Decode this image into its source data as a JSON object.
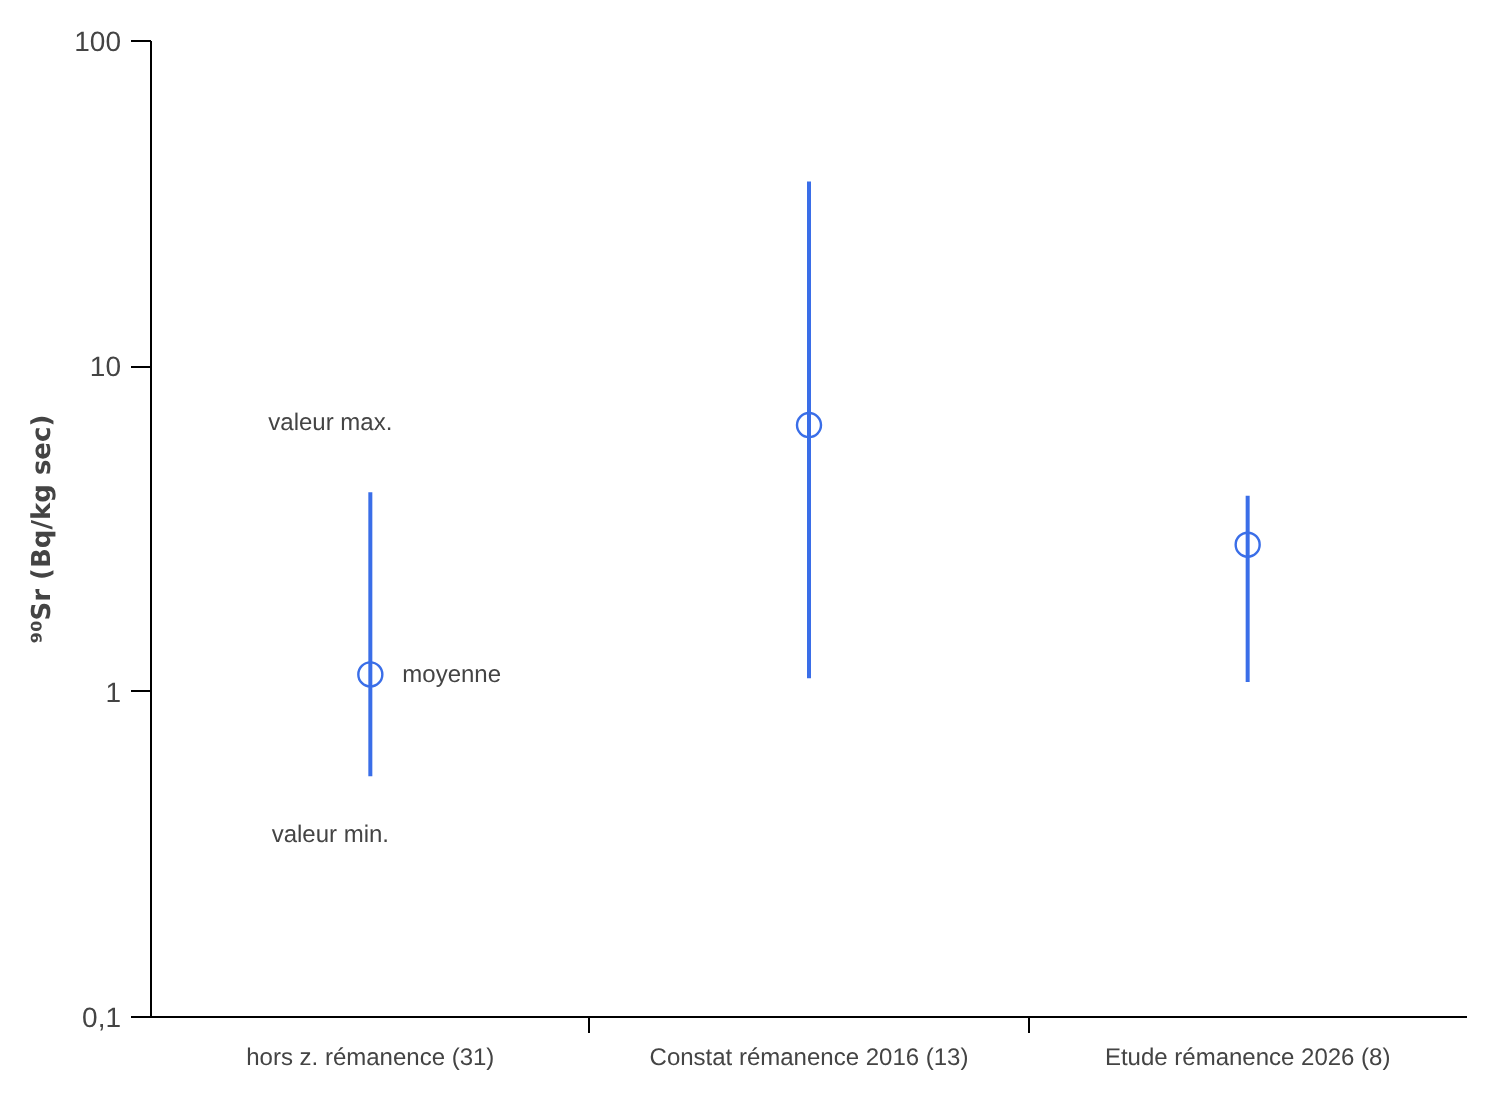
{
  "chart_data": {
    "type": "scatter",
    "ylabel": "⁹⁰Sr (Bq/kg sec)",
    "categories": [
      "hors z. rémanence (31)",
      "Constat rémanence 2016 (13)",
      "Etude rémanence 2026 (8)"
    ],
    "values": [
      1.13,
      6.6,
      2.83
    ],
    "errors": [
      [
        0.55,
        4.1
      ],
      [
        1.1,
        37
      ],
      [
        1.07,
        4.0
      ]
    ],
    "color": "#3a6ee8",
    "marker": "circle",
    "log": true,
    "grid": false,
    "ylim": [
      0.1,
      100
    ],
    "yticks": [
      {
        "value": 0.1,
        "label": "0,1"
      },
      1,
      10,
      100
    ],
    "annotations": [
      "valeur max.",
      "moyenne",
      "valeur min."
    ]
  }
}
